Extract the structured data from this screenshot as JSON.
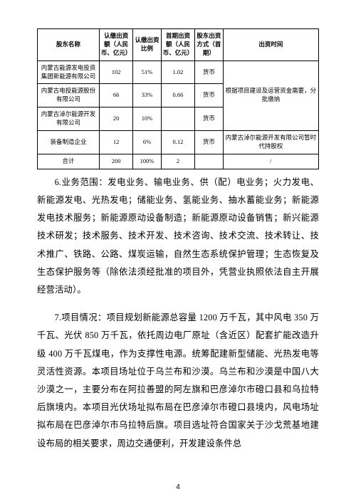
{
  "table": {
    "headers": [
      "股东名称",
      "认缴出资额（人民币、亿元）",
      "认缴出资比例",
      "首期出资额（人民币、亿元）",
      "股东出资方式（首期）",
      "出资时间"
    ],
    "rows": [
      [
        "内蒙古能源发电投资集团新能源有限公司",
        "102",
        "51%",
        "1.02",
        "货币",
        ""
      ],
      [
        "内蒙古电投能源股份有限公司",
        "66",
        "33%",
        "0.66",
        "货币",
        ""
      ],
      [
        "内蒙古淖尔能源开发有限公司",
        "20",
        "10%",
        "",
        "货币",
        ""
      ],
      [
        "装备制造企业",
        "12",
        "6%",
        "0.12",
        "货币",
        "内蒙古淖尔能源开发有限公司暂时代持股权"
      ],
      [
        "合计",
        "200",
        "100%",
        "2",
        "",
        "/"
      ]
    ],
    "merged_cell_r1": "根据项目建设及运营资金需要，分批缴纳"
  },
  "para6": "6.业务范围：发电业务、输电业务、供（配）电业务；火力发电、新能源发电、光热发电；储能业务、氢能业务、抽水蓄能业务；新能源发电技术服务；新能源原动设备制造；新能源原动设备销售；新兴能源技术研发；技术服务、技术开发、技术咨询、技术交流、技术转让、技术推广、铁路、公路、煤炭运输，自然生态系统保护管理；生态恢复及生态保护服务等（除依法须经批准的项目外，凭营业执照依法自主开展经营活动）。",
  "para7": "7.项目情况：项目规划新能源总容量 1200 万千瓦，其中风电 350 万千瓦、光伏 850 万千瓦，依托周边电厂原址（含近区）配套扩能改造升级 400 万千瓦煤电，作为支撑性电源。统筹配建新型储能、光热发电等灵活性资源。本项目场址位于乌兰布和沙漠。乌兰布和沙漠是中国八大沙漠之一，主要分布在阿拉善盟的阿左旗和巴彦淖尔市磴口县和乌拉特后旗境内。本项目光伏场址拟布局在巴彦淖尔市磴口县境内，风电场址拟布局在巴彦淖尔市乌拉特后旗。项目选址符合国家关于沙戈荒基地建设布局的相关要求，周边交通便利，开发建设条件总",
  "pageNumber": "4"
}
